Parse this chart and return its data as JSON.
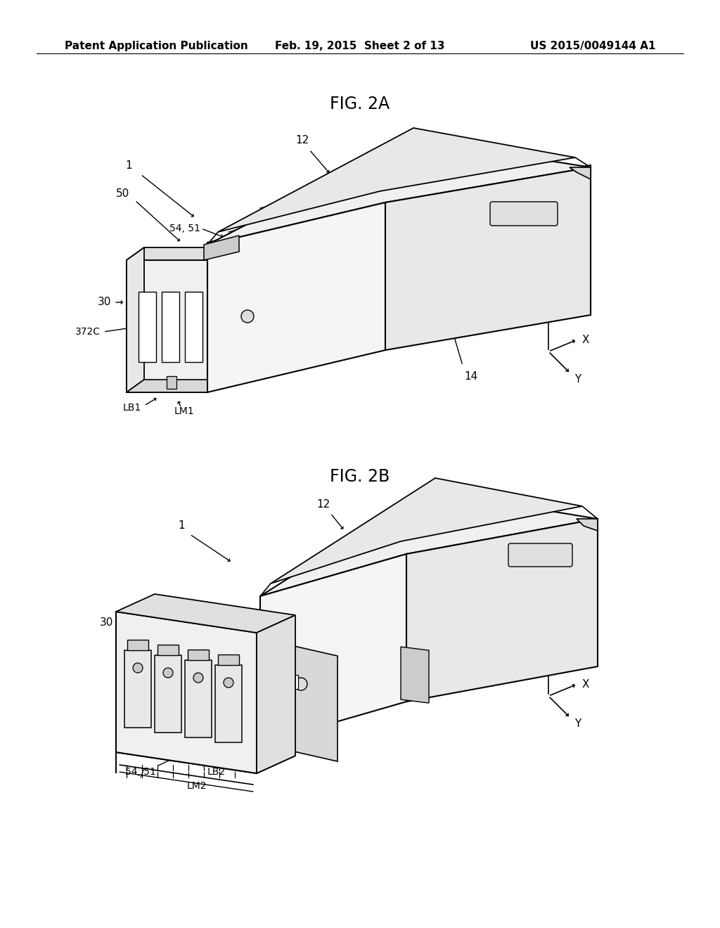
{
  "background_color": "#ffffff",
  "header_left": "Patent Application Publication",
  "header_center": "Feb. 19, 2015  Sheet 2 of 13",
  "header_right": "US 2015/0049144 A1",
  "fig2a_title": "FIG. 2A",
  "fig2b_title": "FIG. 2B",
  "line_color": "#000000",
  "text_color": "#000000",
  "header_fontsize": 11,
  "title_fontsize": 17,
  "label_fontsize": 11
}
